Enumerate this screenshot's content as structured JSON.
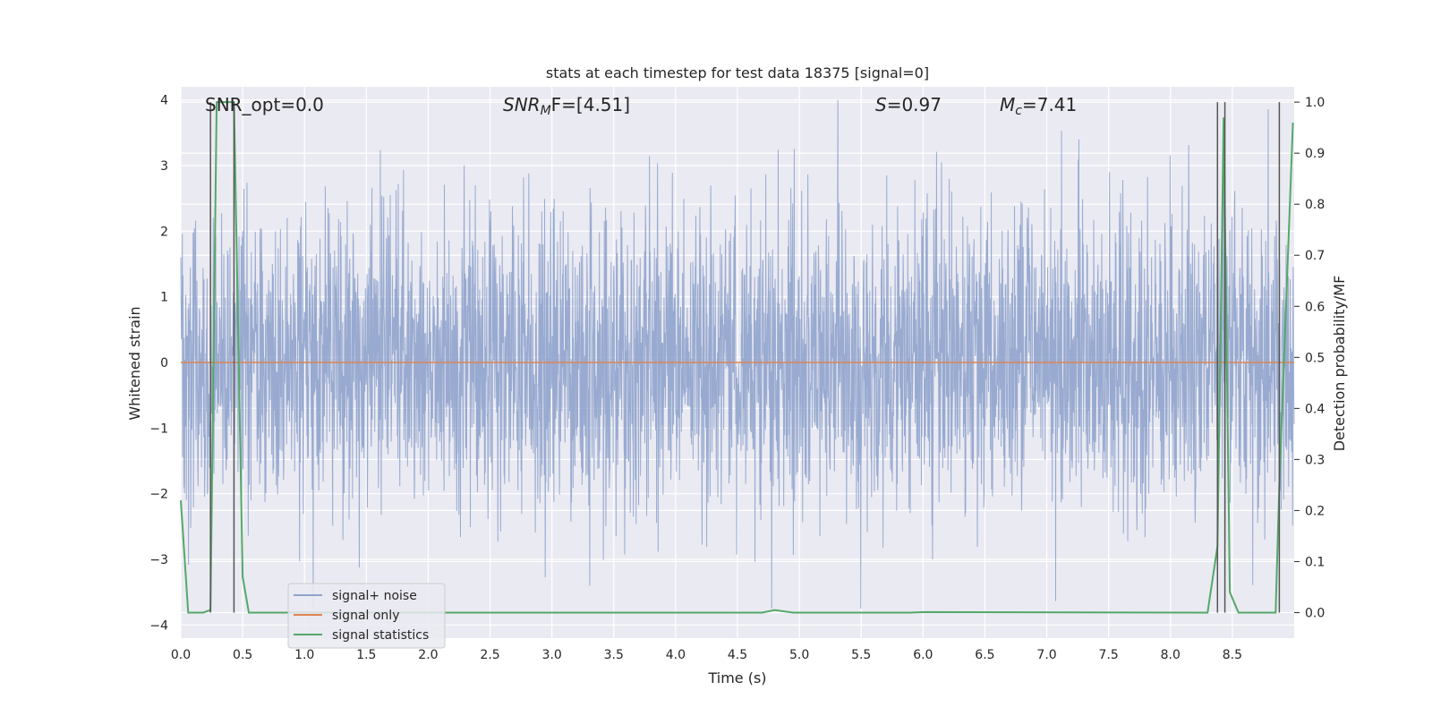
{
  "chart_data": {
    "type": "line",
    "title": "stats at each timestep for test data 18375 [signal=0]",
    "xlabel": "Time (s)",
    "ylabel": "Whitened strain",
    "ylabel_right": "Detection probability/MF",
    "xlim": [
      0.0,
      9.0
    ],
    "ylim": [
      -4.2,
      4.2
    ],
    "ylim_right": [
      -0.05,
      1.03
    ],
    "x_ticks": [
      "0.0",
      "0.5",
      "1.0",
      "1.5",
      "2.0",
      "2.5",
      "3.0",
      "3.5",
      "4.0",
      "4.5",
      "5.0",
      "5.5",
      "6.0",
      "6.5",
      "7.0",
      "7.5",
      "8.0",
      "8.5"
    ],
    "y_ticks": [
      "4",
      "3",
      "2",
      "1",
      "0",
      "−1",
      "−2",
      "−3",
      "−4"
    ],
    "y_ticks_right": [
      "1.0",
      "0.9",
      "0.8",
      "0.7",
      "0.6",
      "0.5",
      "0.4",
      "0.3",
      "0.2",
      "0.1",
      "0.0"
    ],
    "grid": true,
    "legend_position": "lower-left",
    "annotations": {
      "snr_opt": "SNR_opt=0.0",
      "snr_mf_label": "SNR",
      "snr_mf_sub": "M",
      "snr_mf_value": "F=[4.51]",
      "s_label": "S",
      "s_value": "=0.97",
      "mc_label": "M",
      "mc_sub": "c",
      "mc_value": "=7.41"
    },
    "series": [
      {
        "name": "signal+ noise",
        "color": "#8fa3cc",
        "description_values": "whitened noise, amplitude roughly within [-3.7, 4.0]"
      },
      {
        "name": "signal only",
        "color": "#dd8452",
        "y": 0
      },
      {
        "name": "signal statistics",
        "color": "#55a868",
        "axis": "right",
        "x": [
          0.0,
          0.06,
          0.18,
          0.24,
          0.29,
          0.43,
          0.5,
          0.55,
          4.7,
          4.8,
          4.95,
          5.9,
          6.0,
          8.3,
          8.38,
          8.43,
          8.48,
          8.55,
          8.85,
          8.88,
          8.99
        ],
        "y": [
          0.22,
          0.0,
          0.0,
          0.005,
          1.0,
          1.0,
          0.07,
          0.0,
          0.0,
          0.005,
          0.0,
          0.0,
          0.001,
          0.0,
          0.13,
          0.97,
          0.04,
          0.0,
          0.0,
          0.25,
          0.96
        ]
      }
    ],
    "vertical_markers": [
      0.24,
      0.43,
      8.38,
      8.44,
      8.88
    ]
  }
}
